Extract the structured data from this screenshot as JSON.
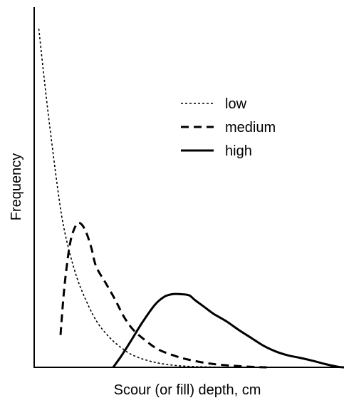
{
  "chart_data": {
    "type": "line",
    "title": "",
    "xlabel": "Scour (or fill) depth, cm",
    "ylabel": "Frequency",
    "x_ticks": [],
    "y_ticks": [],
    "xlim": [
      0,
      100
    ],
    "ylim": [
      0,
      100
    ],
    "grid": false,
    "legend_position": "top-right",
    "series": [
      {
        "name": "low",
        "line_style": "dotted",
        "x": [
          1.5,
          3,
          5,
          8,
          10,
          13,
          16,
          20,
          24,
          28,
          32,
          37,
          42,
          48,
          55,
          62,
          68
        ],
        "y": [
          94,
          82,
          67,
          47,
          37,
          27,
          20,
          13,
          8.6,
          5.5,
          3.3,
          1.8,
          0.9,
          0.35,
          0.12,
          0.04,
          0
        ]
      },
      {
        "name": "medium",
        "line_style": "dashed",
        "x": [
          8.5,
          9.5,
          10.5,
          11.5,
          12.5,
          14,
          15.5,
          17,
          18.5,
          20,
          23,
          26,
          29,
          32,
          36,
          40,
          45,
          50,
          57,
          64,
          71,
          75
        ],
        "y": [
          9,
          20,
          28,
          34,
          37.5,
          40,
          39.5,
          37,
          33,
          28,
          23.5,
          19,
          14,
          10.4,
          7.4,
          5,
          3.3,
          2.1,
          1,
          0.45,
          0.1,
          0
        ]
      },
      {
        "name": "high",
        "line_style": "solid",
        "x": [
          25.5,
          28,
          31,
          35,
          39,
          42,
          44.5,
          47.5,
          50,
          52,
          55,
          58,
          62,
          66,
          70,
          74,
          78,
          82,
          86,
          90,
          94,
          98,
          100
        ],
        "y": [
          0,
          3,
          7,
          12.6,
          17.4,
          19.6,
          20.3,
          20.3,
          20,
          18.6,
          16.7,
          14.8,
          12.8,
          10.4,
          8.2,
          6,
          4.4,
          3.3,
          2.6,
          1.8,
          0.9,
          0.15,
          0
        ]
      }
    ]
  }
}
